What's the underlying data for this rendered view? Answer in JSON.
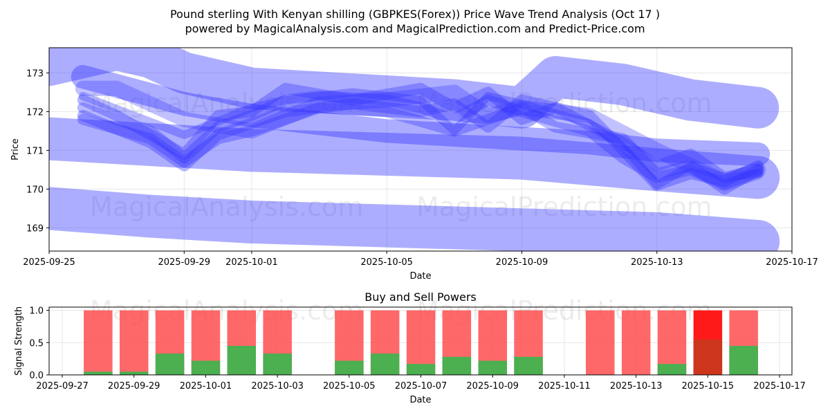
{
  "title_line1": "Pound sterling With Kenyan shilling (GBPKES(Forex)) Price Wave Trend Analysis (Oct 17 )",
  "title_line2": "powered by MagicalAnalysis.com and MagicalPrediction.com and Predict-Price.com",
  "watermarks": [
    "MagicalAnalysis.com",
    "MagicalPrediction.com"
  ],
  "colors": {
    "wave": "#3333ff",
    "buy": "#4caf50",
    "sell": "#ff4d4d",
    "sell_strong": "#ff1a1a",
    "overlap": "#c8381e"
  },
  "chart_data": [
    {
      "type": "line",
      "title": "",
      "xlabel": "Date",
      "ylabel": "Price",
      "ylim": [
        168.4,
        173.65
      ],
      "xlim": [
        "2025-09-25",
        "2025-10-17"
      ],
      "yticks": [
        169,
        170,
        171,
        172,
        173
      ],
      "xticks": [
        "2025-09-25",
        "2025-09-29",
        "2025-10-01",
        "2025-10-05",
        "2025-10-09",
        "2025-10-13",
        "2025-10-17"
      ],
      "grid": true,
      "series": [
        {
          "name": "wave-band-upper",
          "x": [
            "2025-09-25",
            "2025-09-27",
            "2025-09-28",
            "2025-09-29",
            "2025-10-01",
            "2025-10-03",
            "2025-10-05",
            "2025-10-07",
            "2025-10-09",
            "2025-10-10",
            "2025-10-12",
            "2025-10-14",
            "2025-10-16"
          ],
          "values": [
            173.2,
            173.6,
            173.4,
            173.0,
            172.6,
            172.5,
            172.4,
            172.3,
            172.1,
            172.9,
            172.7,
            172.3,
            172.1
          ],
          "width": 60,
          "opacity": 0.4
        },
        {
          "name": "wave-band-lower",
          "x": [
            "2025-09-25",
            "2025-09-28",
            "2025-09-29",
            "2025-10-01",
            "2025-10-05",
            "2025-10-09",
            "2025-10-13",
            "2025-10-16"
          ],
          "values": [
            169.5,
            169.3,
            169.25,
            169.15,
            169.05,
            168.95,
            168.85,
            168.65
          ],
          "width": 62,
          "opacity": 0.4
        },
        {
          "name": "wave-band-middle",
          "x": [
            "2025-09-25",
            "2025-09-29",
            "2025-10-01",
            "2025-10-05",
            "2025-10-09",
            "2025-10-13",
            "2025-10-16"
          ],
          "values": [
            171.3,
            171.1,
            171.0,
            170.9,
            170.8,
            170.5,
            170.3
          ],
          "width": 62,
          "opacity": 0.4
        },
        {
          "name": "wave-long-down",
          "x": [
            "2025-09-26",
            "2025-09-29",
            "2025-10-01",
            "2025-10-03",
            "2025-10-05",
            "2025-10-07",
            "2025-10-09",
            "2025-10-11",
            "2025-10-13",
            "2025-10-16"
          ],
          "values": [
            172.9,
            172.2,
            171.9,
            171.7,
            171.5,
            171.4,
            171.3,
            171.2,
            171.0,
            170.9
          ],
          "width": 34,
          "opacity": 0.4
        },
        {
          "name": "wave-a",
          "x": [
            "2025-09-26",
            "2025-09-28",
            "2025-09-29",
            "2025-09-30",
            "2025-10-01",
            "2025-10-02",
            "2025-10-03",
            "2025-10-05",
            "2025-10-06",
            "2025-10-07",
            "2025-10-08",
            "2025-10-09",
            "2025-10-11",
            "2025-10-12",
            "2025-10-13",
            "2025-10-14",
            "2025-10-15",
            "2025-10-16"
          ],
          "values": [
            172.1,
            171.5,
            170.8,
            171.6,
            171.9,
            172.3,
            172.4,
            172.3,
            172.1,
            171.8,
            172.3,
            172.0,
            171.5,
            170.8,
            170.3,
            170.5,
            170.1,
            170.4
          ],
          "width": 16,
          "opacity": 0.35
        },
        {
          "name": "wave-b",
          "x": [
            "2025-09-26",
            "2025-09-28",
            "2025-09-29",
            "2025-09-30",
            "2025-10-02",
            "2025-10-04",
            "2025-10-06",
            "2025-10-07",
            "2025-10-08",
            "2025-10-09",
            "2025-10-11",
            "2025-10-12",
            "2025-10-13",
            "2025-10-14",
            "2025-10-15",
            "2025-10-16"
          ],
          "values": [
            171.9,
            171.2,
            170.6,
            171.4,
            172.0,
            172.2,
            172.0,
            172.2,
            171.6,
            172.3,
            171.9,
            171.0,
            170.1,
            170.4,
            170.2,
            170.6
          ],
          "width": 16,
          "opacity": 0.35
        },
        {
          "name": "wave-c",
          "x": [
            "2025-09-26",
            "2025-09-27",
            "2025-09-29",
            "2025-09-30",
            "2025-10-01",
            "2025-10-02",
            "2025-10-04",
            "2025-10-06",
            "2025-10-07",
            "2025-10-08",
            "2025-10-09",
            "2025-10-10",
            "2025-10-12",
            "2025-10-13",
            "2025-10-14",
            "2025-10-15",
            "2025-10-16"
          ],
          "values": [
            172.3,
            171.9,
            170.9,
            171.9,
            172.0,
            172.6,
            172.3,
            172.6,
            172.1,
            172.5,
            171.8,
            172.1,
            171.2,
            170.6,
            170.9,
            170.3,
            170.5
          ],
          "width": 16,
          "opacity": 0.35
        },
        {
          "name": "wave-d",
          "x": [
            "2025-09-26",
            "2025-09-28",
            "2025-09-29",
            "2025-09-30",
            "2025-10-01",
            "2025-10-03",
            "2025-10-05",
            "2025-10-07",
            "2025-10-09",
            "2025-10-10",
            "2025-10-12",
            "2025-10-13",
            "2025-10-14",
            "2025-10-15",
            "2025-10-16"
          ],
          "values": [
            171.8,
            171.3,
            170.7,
            171.3,
            171.5,
            172.1,
            172.0,
            171.5,
            172.1,
            171.6,
            171.3,
            170.4,
            170.6,
            170.0,
            170.5
          ],
          "width": 16,
          "opacity": 0.35
        },
        {
          "name": "wave-e",
          "x": [
            "2025-09-26",
            "2025-09-27",
            "2025-09-29",
            "2025-10-01",
            "2025-10-03",
            "2025-10-05",
            "2025-10-07",
            "2025-10-08",
            "2025-10-09",
            "2025-10-11",
            "2025-10-13",
            "2025-10-15",
            "2025-10-16"
          ],
          "values": [
            172.6,
            172.6,
            171.8,
            171.5,
            172.2,
            172.3,
            172.5,
            171.9,
            172.1,
            171.9,
            171.0,
            170.2,
            170.5
          ],
          "width": 22,
          "opacity": 0.3
        },
        {
          "name": "wave-f",
          "x": [
            "2025-09-26",
            "2025-09-29",
            "2025-10-01",
            "2025-10-02",
            "2025-10-04",
            "2025-10-06",
            "2025-10-07",
            "2025-10-08",
            "2025-10-09",
            "2025-10-11",
            "2025-10-12",
            "2025-10-13",
            "2025-10-14",
            "2025-10-15",
            "2025-10-16"
          ],
          "values": [
            172.4,
            171.4,
            172.1,
            172.3,
            172.5,
            172.3,
            171.5,
            172.4,
            172.2,
            171.7,
            171.1,
            170.1,
            170.6,
            170.3,
            170.4
          ],
          "width": 12,
          "opacity": 0.35
        }
      ]
    },
    {
      "type": "bar",
      "title": "Buy and Sell Powers",
      "xlabel": "Date",
      "ylabel": "Signal Strength",
      "ylim": [
        0,
        1.05
      ],
      "xlim": [
        "2025-09-27",
        "2025-10-17"
      ],
      "yticks": [
        "0.0",
        "0.5",
        "1.0"
      ],
      "xticks": [
        "2025-09-27",
        "2025-09-29",
        "2025-10-01",
        "2025-10-03",
        "2025-10-05",
        "2025-10-07",
        "2025-10-09",
        "2025-10-11",
        "2025-10-13",
        "2025-10-15",
        "2025-10-17"
      ],
      "grid": true,
      "categories": [
        "2025-09-28",
        "2025-09-29",
        "2025-09-30",
        "2025-10-01",
        "2025-10-02",
        "2025-10-03",
        "2025-10-05",
        "2025-10-06",
        "2025-10-07",
        "2025-10-08",
        "2025-10-09",
        "2025-10-10",
        "2025-10-12",
        "2025-10-13",
        "2025-10-14",
        "2025-10-15",
        "2025-10-16"
      ],
      "series": [
        {
          "name": "Sell",
          "values": [
            1,
            1,
            1,
            1,
            1,
            1,
            1,
            1,
            1,
            1,
            1,
            1,
            1,
            1,
            1,
            1,
            1
          ]
        },
        {
          "name": "Buy",
          "values": [
            0.05,
            0.05,
            0.33,
            0.22,
            0.45,
            0.33,
            0.22,
            0.33,
            0.17,
            0.28,
            0.22,
            0.28,
            0.0,
            0.0,
            0.17,
            0.55,
            0.45
          ]
        }
      ],
      "strong_sell_index": 15
    }
  ]
}
